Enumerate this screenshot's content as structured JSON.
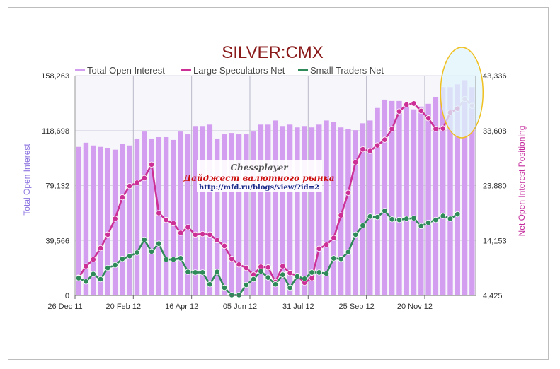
{
  "chart_data": {
    "type": "bar",
    "title": "SILVER:CMX",
    "ylabel": "Total Open Interest",
    "y2label": "Net Open Interest Positioning",
    "ylim": [
      0,
      158263
    ],
    "y2lim": [
      4425,
      43336
    ],
    "y_ticks": [
      "158,263",
      "118,698",
      "79,132",
      "39,566",
      "0"
    ],
    "y2_ticks": [
      "43,336",
      "33,608",
      "23,880",
      "14,153",
      "4,425"
    ],
    "x_tick_labels": [
      "26 Dec 11",
      "20 Feb 12",
      "16 Apr 12",
      "05 Jun 12",
      "31 Jul 12",
      "25 Sep 12",
      "20 Nov 12"
    ],
    "grid": true,
    "legend_position": "top",
    "series": [
      {
        "name": "Total Open Interest",
        "axis": "left",
        "render": "bar",
        "color": "#d39ef0",
        "values": [
          107000,
          110000,
          108000,
          107000,
          106000,
          105000,
          109000,
          108000,
          113000,
          118000,
          113000,
          114000,
          114000,
          112000,
          118000,
          116000,
          122000,
          122000,
          123000,
          113000,
          116000,
          117000,
          116000,
          116000,
          118000,
          123000,
          123000,
          126000,
          122000,
          123000,
          121000,
          122000,
          121000,
          123000,
          126000,
          125000,
          121000,
          120000,
          119000,
          124000,
          126000,
          135000,
          141000,
          140000,
          140000,
          138000,
          134000,
          136000,
          138000,
          143000,
          150000,
          150000,
          152000,
          155000,
          150000
        ]
      },
      {
        "name": "Large Speculators Net",
        "axis": "right",
        "render": "line",
        "color": "#cc2f96",
        "values": [
          7600,
          9600,
          10800,
          12800,
          15200,
          18000,
          21800,
          23800,
          24400,
          25200,
          27600,
          19000,
          17800,
          17200,
          15500,
          16500,
          15200,
          15300,
          15200,
          14200,
          13200,
          10900,
          9900,
          9300,
          8100,
          9500,
          9400,
          6800,
          9600,
          8400,
          7900,
          6700,
          7500,
          12700,
          13400,
          14600,
          18600,
          22600,
          28000,
          30300,
          30000,
          31000,
          32000,
          33900,
          37000,
          38200,
          38400,
          37100,
          35800,
          33900,
          34000,
          36800,
          37500,
          39200,
          38000
        ]
      },
      {
        "name": "Small Traders Net",
        "axis": "right",
        "render": "line",
        "color": "#2f8a5a",
        "values": [
          7500,
          6900,
          8200,
          7300,
          9300,
          9800,
          10900,
          11400,
          12000,
          14300,
          12200,
          13600,
          10800,
          10800,
          11000,
          8600,
          8500,
          8500,
          6400,
          8600,
          5800,
          4500,
          4500,
          6300,
          7300,
          8700,
          7600,
          6400,
          8100,
          5800,
          7800,
          7400,
          8500,
          8500,
          8300,
          11000,
          10900,
          12100,
          15200,
          16800,
          18400,
          18300,
          19400,
          17900,
          17800,
          18000,
          18100,
          16700,
          17300,
          17800,
          18500,
          18000,
          18800,
          null,
          null
        ]
      }
    ],
    "annotations": [
      {
        "text": "Chessplayer"
      },
      {
        "text": "Дайджест валютного рынка"
      },
      {
        "text": "http://mfd.ru/blogs/view/?id=2"
      }
    ],
    "highlight": {
      "type": "ellipse",
      "color": "#f0c020",
      "fill": "#dff4fb",
      "over": "last points"
    }
  }
}
